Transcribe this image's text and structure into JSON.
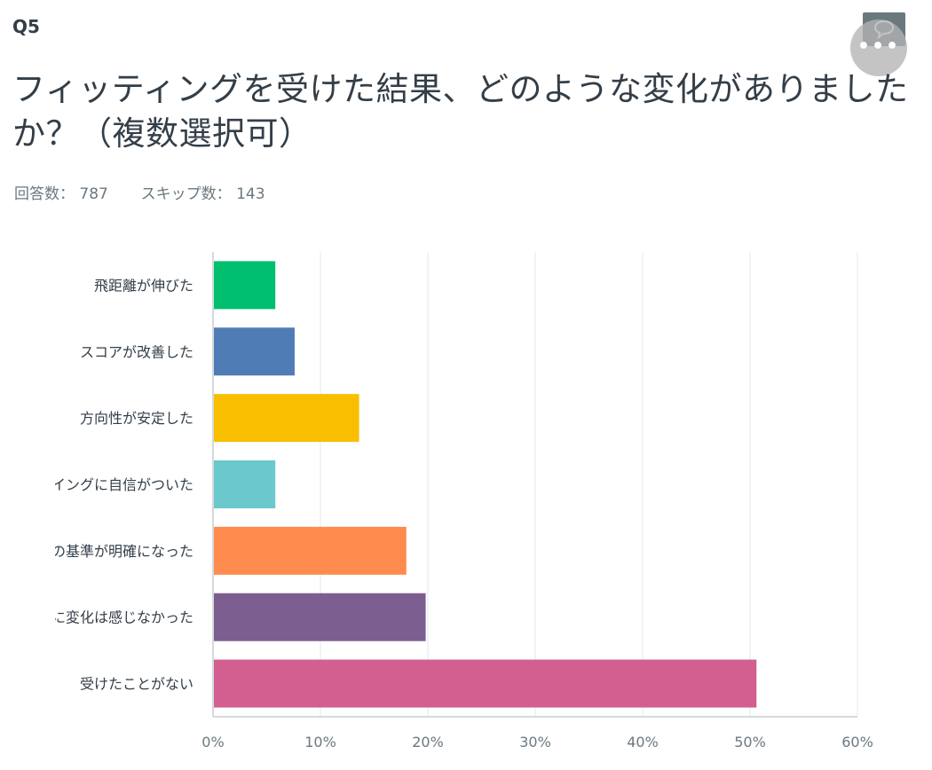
{
  "question": {
    "number": "Q5",
    "title": "フィッティングを受けた結果、どのような変化がありましたか？（複数選択可）"
  },
  "stats": {
    "answered_label": "回答数：",
    "answered_value": "787",
    "skipped_label": "スキップ数：",
    "skipped_value": "143"
  },
  "icons": {
    "comment": "speech-bubble-icon",
    "more": "more-dots-icon"
  },
  "chart_data": {
    "type": "bar",
    "orientation": "horizontal",
    "categories": [
      "飛距離が伸びた",
      "スコアが改善した",
      "方向性が安定した",
      "スイングに自信がついた",
      "クラブ選びの基準が明確になった",
      "特に変化は感じなかった",
      "受けたことがない"
    ],
    "values": [
      5.8,
      7.6,
      13.6,
      5.8,
      18.0,
      19.8,
      50.6
    ],
    "colors": [
      "#00bf6f",
      "#507cb6",
      "#f9be00",
      "#6bc8cd",
      "#ff8b4f",
      "#7d5e90",
      "#d25f90"
    ],
    "xlim": [
      0,
      60
    ],
    "xticks": [
      0,
      10,
      20,
      30,
      40,
      50,
      60
    ],
    "tick_format": "{v}%",
    "grid": true
  }
}
